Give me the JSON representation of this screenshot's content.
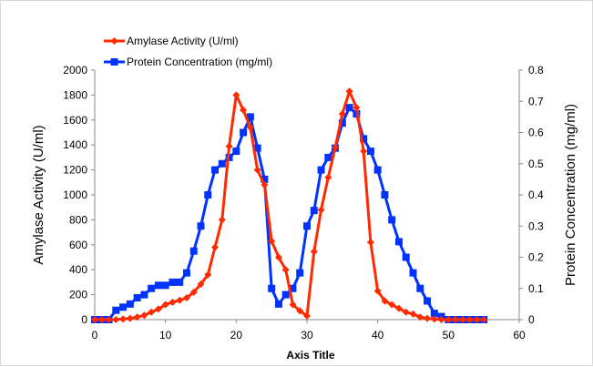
{
  "chart_data": {
    "type": "line",
    "xlabel": "Axis Title",
    "ylabel": "Amylase Activity (U/ml)",
    "y2label": "Protein Concentration (mg/ml)",
    "xlim": [
      0,
      60
    ],
    "ylim": [
      0,
      2000
    ],
    "y2lim": [
      0,
      0.8
    ],
    "x_ticks": [
      "0",
      "10",
      "20",
      "30",
      "40",
      "50",
      "60"
    ],
    "y_ticks": [
      "0",
      "200",
      "400",
      "600",
      "800",
      "1000",
      "1200",
      "1400",
      "1600",
      "1800",
      "2000"
    ],
    "y2_ticks": [
      "0",
      "0.1",
      "0.2",
      "0.3",
      "0.4",
      "0.5",
      "0.6",
      "0.7",
      "0.8"
    ],
    "grid": false,
    "legend_position": "top-left",
    "series": [
      {
        "name": "Amylase Activity (U/ml)",
        "axis": "left",
        "color": "#ff2a00",
        "marker": "diamond",
        "x": [
          0,
          1,
          2,
          3,
          4,
          5,
          6,
          7,
          8,
          9,
          10,
          11,
          12,
          13,
          14,
          15,
          16,
          17,
          18,
          19,
          20,
          21,
          22,
          23,
          24,
          25,
          26,
          27,
          28,
          29,
          30,
          31,
          32,
          33,
          34,
          35,
          36,
          37,
          38,
          39,
          40,
          41,
          42,
          43,
          44,
          45,
          46,
          47,
          48,
          49,
          50,
          51,
          52,
          53,
          54,
          55
        ],
        "values": [
          0,
          0,
          0,
          0,
          5,
          10,
          20,
          35,
          60,
          85,
          120,
          140,
          155,
          175,
          220,
          285,
          360,
          580,
          800,
          1390,
          1800,
          1680,
          1540,
          1200,
          1080,
          630,
          500,
          400,
          120,
          70,
          30,
          545,
          880,
          1140,
          1380,
          1650,
          1830,
          1700,
          1350,
          620,
          230,
          150,
          120,
          90,
          60,
          45,
          20,
          10,
          5,
          0,
          0,
          0,
          0,
          0,
          0,
          0
        ]
      },
      {
        "name": "Protein Concentration (mg/ml)",
        "axis": "right",
        "color": "#0033ff",
        "marker": "square",
        "x": [
          0,
          1,
          2,
          3,
          4,
          5,
          6,
          7,
          8,
          9,
          10,
          11,
          12,
          13,
          14,
          15,
          16,
          17,
          18,
          19,
          20,
          21,
          22,
          23,
          24,
          25,
          26,
          27,
          28,
          29,
          30,
          31,
          32,
          33,
          34,
          35,
          36,
          37,
          38,
          39,
          40,
          41,
          42,
          43,
          44,
          45,
          46,
          47,
          48,
          49,
          50,
          51,
          52,
          53,
          54,
          55
        ],
        "values": [
          0,
          0,
          0,
          0.03,
          0.04,
          0.05,
          0.07,
          0.08,
          0.1,
          0.11,
          0.11,
          0.12,
          0.12,
          0.15,
          0.22,
          0.3,
          0.4,
          0.48,
          0.5,
          0.52,
          0.54,
          0.6,
          0.65,
          0.55,
          0.45,
          0.1,
          0.05,
          0.08,
          0.1,
          0.15,
          0.3,
          0.35,
          0.48,
          0.52,
          0.55,
          0.63,
          0.68,
          0.66,
          0.58,
          0.54,
          0.48,
          0.4,
          0.32,
          0.25,
          0.2,
          0.15,
          0.1,
          0.06,
          0.02,
          0.01,
          0,
          0,
          0,
          0,
          0,
          0
        ]
      }
    ]
  }
}
